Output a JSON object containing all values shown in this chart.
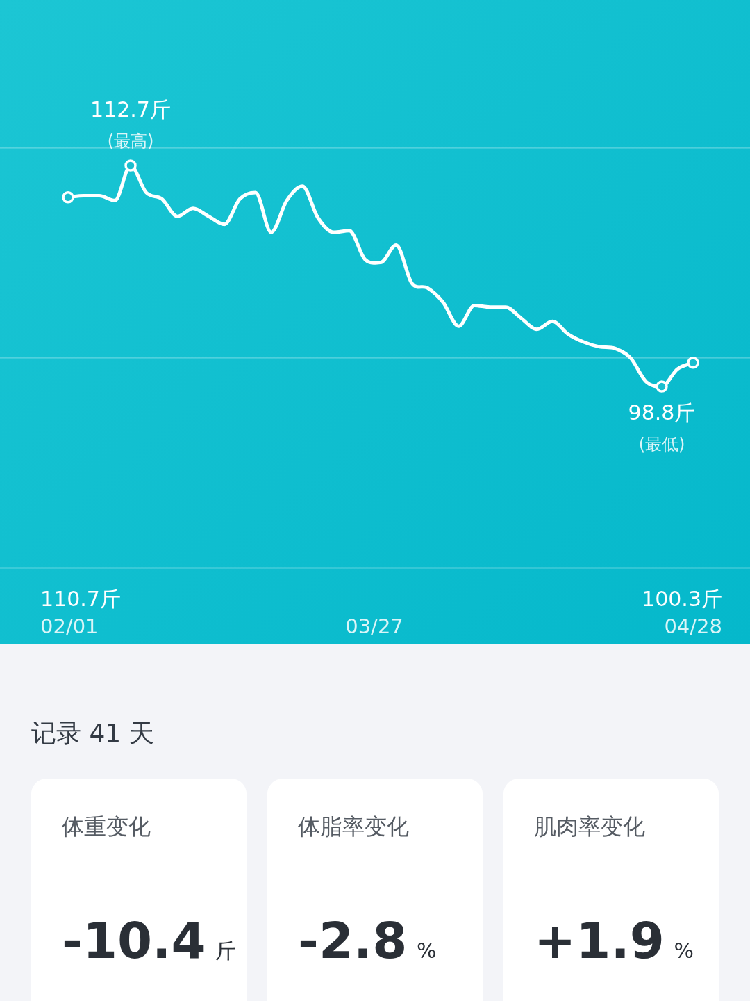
{
  "chart_data": [
    {
      "type": "line",
      "categories": [
        "02/01",
        null,
        null,
        null,
        null,
        null,
        null,
        null,
        null,
        null,
        null,
        null,
        null,
        null,
        null,
        null,
        null,
        null,
        null,
        null,
        "03/27",
        null,
        null,
        null,
        null,
        null,
        null,
        null,
        null,
        null,
        null,
        null,
        null,
        null,
        null,
        null,
        null,
        null,
        null,
        null,
        "04/28"
      ],
      "series": [
        {
          "color": "#ffffff",
          "marker": "none",
          "values": [
            110.7,
            110.8,
            110.8,
            110.5,
            112.7,
            111.0,
            110.6,
            109.5,
            110.0,
            109.5,
            109.0,
            110.6,
            111.0,
            108.5,
            110.5,
            111.4,
            109.4,
            108.5,
            108.6,
            106.8,
            106.6,
            107.7,
            105.3,
            105.0,
            104.1,
            102.6,
            103.9,
            103.8,
            103.8,
            103.1,
            102.4,
            102.9,
            102.1,
            101.6,
            101.3,
            101.2,
            100.6,
            99.1,
            98.8,
            99.9,
            100.3
          ]
        },
        {
          "type": "scatter",
          "color": "#ffffff",
          "marker": "circle",
          "values": [
            110.7,
            null,
            null,
            null,
            112.7,
            null,
            null,
            null,
            null,
            null,
            null,
            null,
            null,
            null,
            null,
            null,
            null,
            null,
            null,
            null,
            null,
            null,
            null,
            null,
            null,
            null,
            null,
            null,
            null,
            null,
            null,
            null,
            null,
            null,
            null,
            null,
            null,
            null,
            98.8,
            null,
            100.3
          ],
          "value_labels": [
            null,
            null,
            null,
            null,
            "112.7斤\n(最高)",
            null,
            null,
            null,
            null,
            null,
            null,
            null,
            null,
            null,
            null,
            null,
            null,
            null,
            null,
            null,
            null,
            null,
            null,
            null,
            null,
            null,
            null,
            null,
            null,
            null,
            null,
            null,
            null,
            null,
            null,
            null,
            null,
            null,
            "98.8斤\n(最低)",
            null,
            null
          ]
        }
      ],
      "ylim": [
        87.4,
        123.1
      ],
      "ref_lines": [
        {
          "axis": "y",
          "value": 113.8,
          "color": "#ffffff"
        },
        {
          "axis": "y",
          "value": 100.6,
          "color": "#ffffff"
        },
        {
          "axis": "y",
          "value": 87.4,
          "color": "#ffffff"
        }
      ],
      "annotations": [
        "110.7斤",
        "100.3斤"
      ],
      "tick_labels": "x",
      "line_style": "solid"
    },
    {
      "type": "other",
      "title": "记录 41 天",
      "annotations": [
        "体重变化",
        "-10.4 斤",
        "体脂率变化",
        "-2.8 %",
        "肌肉率变化",
        "+1.9 %"
      ]
    }
  ]
}
